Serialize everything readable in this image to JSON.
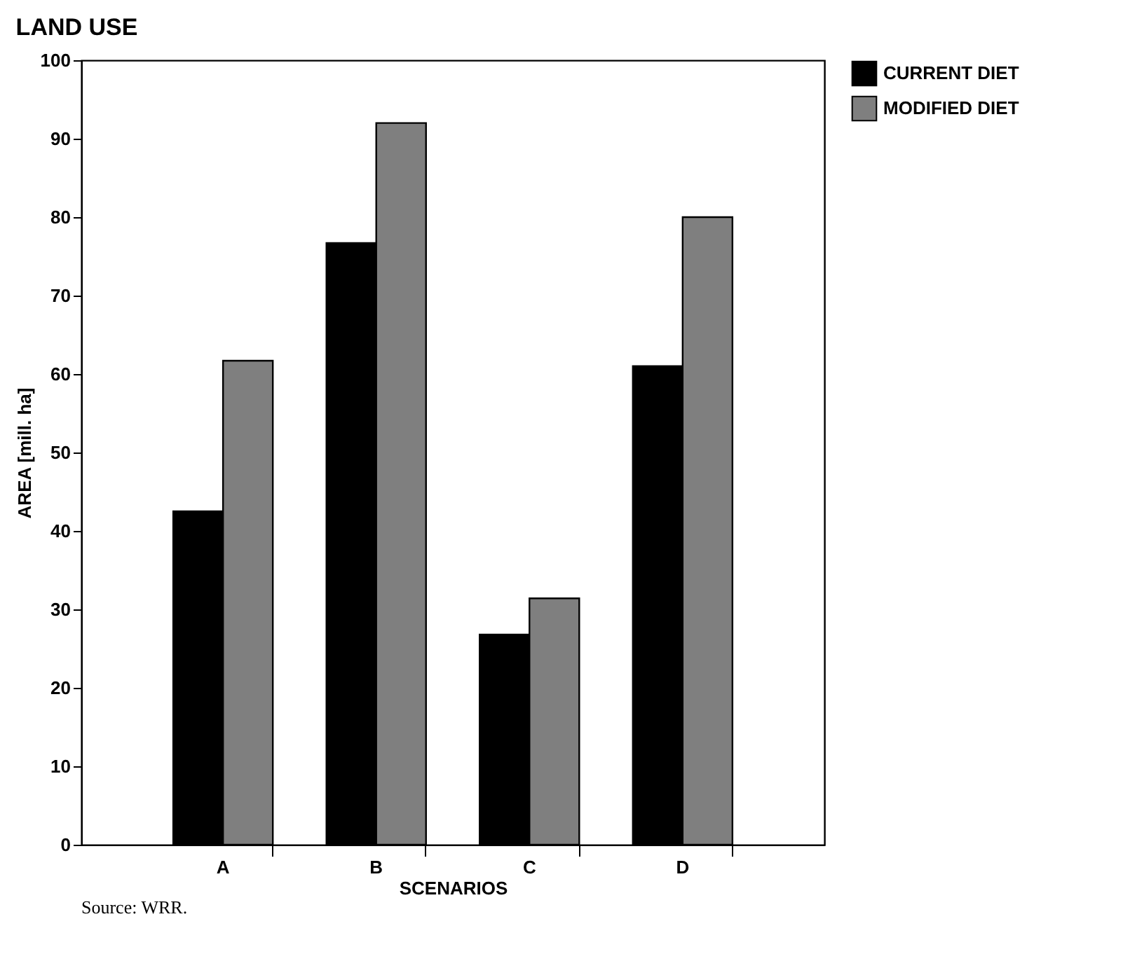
{
  "chart_data": {
    "type": "bar",
    "title": "LAND USE",
    "xlabel": "SCENARIOS",
    "ylabel": "AREA [mill. ha]",
    "categories": [
      "A",
      "B",
      "C",
      "D"
    ],
    "series": [
      {
        "name": "CURRENT DIET",
        "color": "#000000",
        "values": [
          42.5,
          76.7,
          26.8,
          61
        ]
      },
      {
        "name": "MODIFIED DIET",
        "color": "#7f7f7f",
        "values": [
          61.7,
          92,
          31.4,
          80
        ]
      }
    ],
    "ylim": [
      0,
      100
    ],
    "yticks": [
      0,
      10,
      20,
      30,
      40,
      50,
      60,
      70,
      80,
      90,
      100
    ],
    "grid": false,
    "legend": "top right",
    "annotations": [
      "Source: WRR."
    ]
  }
}
